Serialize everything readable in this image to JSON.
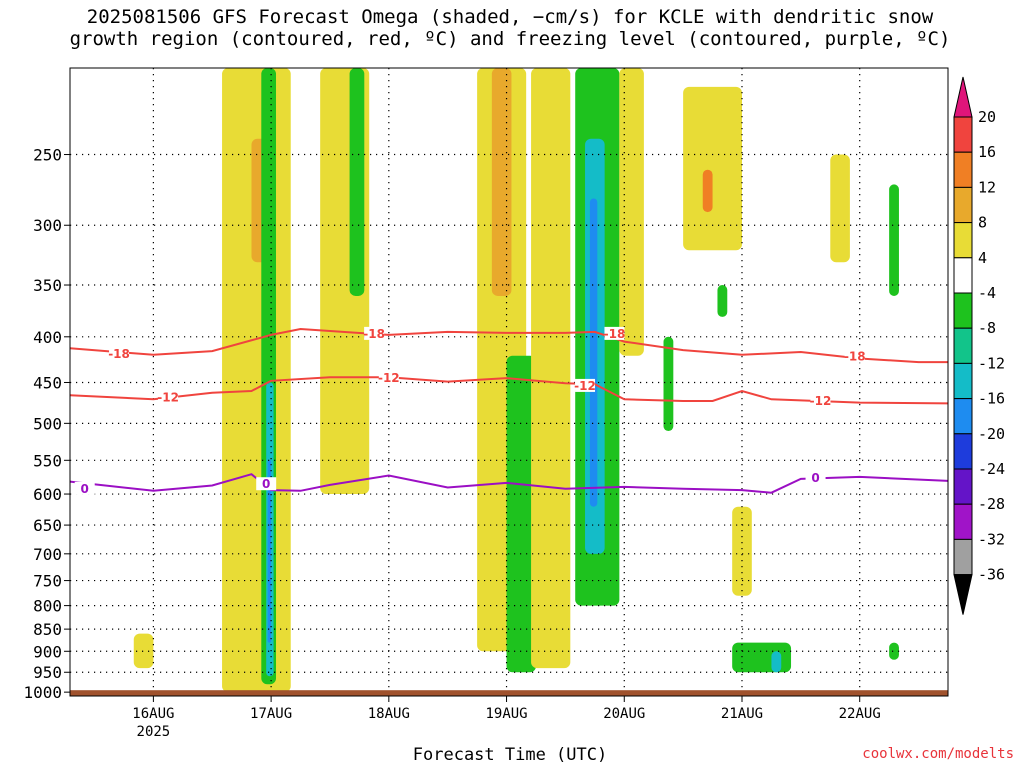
{
  "title_line1": "2025081506 GFS Forecast Omega (shaded, −cm/s) for KCLE with dendritic snow",
  "title_line2": "growth region (contoured, red, ºC) and freezing level (contoured, purple, ºC)",
  "credit": "coolwx.com/modelts",
  "colors": {
    "ground": "#a0522d",
    "contour_red": "#f0443e",
    "contour_purple": "#9b0fc4"
  },
  "chart_data": {
    "type": "heatmap",
    "title": "2025081506 GFS Forecast Omega (shaded, −cm/s) for KCLE with dendritic snow growth region (contoured, red, ºC) and freezing level (contoured, purple, ºC)",
    "xlabel": "Forecast Time (UTC)",
    "ylabel": "",
    "x_ticks": [
      "16AUG",
      "17AUG",
      "18AUG",
      "19AUG",
      "20AUG",
      "21AUG",
      "22AUG"
    ],
    "x_sub_label": "2025",
    "x_range_hours": [
      -17,
      162
    ],
    "y_ticks": [
      250,
      300,
      350,
      400,
      450,
      500,
      550,
      600,
      650,
      700,
      750,
      800,
      850,
      900,
      950,
      1000
    ],
    "y_range_hpa": [
      200,
      1010
    ],
    "grid": true,
    "colorbar": {
      "labels": [
        20,
        16,
        12,
        8,
        4,
        -4,
        -8,
        -12,
        -16,
        -20,
        -24,
        -28,
        -32,
        -36
      ],
      "bins": [
        {
          "from": 20,
          "to": 99,
          "color": "#e0157a"
        },
        {
          "from": 16,
          "to": 20,
          "color": "#f0443e"
        },
        {
          "from": 12,
          "to": 16,
          "color": "#f07f24"
        },
        {
          "from": 8,
          "to": 12,
          "color": "#e8a92c"
        },
        {
          "from": 4,
          "to": 8,
          "color": "#e8dc36"
        },
        {
          "from": -4,
          "to": 4,
          "color": "#ffffff"
        },
        {
          "from": -8,
          "to": -4,
          "color": "#1ec21e"
        },
        {
          "from": -12,
          "to": -8,
          "color": "#12c48a"
        },
        {
          "from": -16,
          "to": -12,
          "color": "#14bcc8"
        },
        {
          "from": -20,
          "to": -16,
          "color": "#1e8cf0"
        },
        {
          "from": -24,
          "to": -20,
          "color": "#1e3cdc"
        },
        {
          "from": -28,
          "to": -24,
          "color": "#6414c8"
        },
        {
          "from": -32,
          "to": -28,
          "color": "#a014c8"
        },
        {
          "from": -36,
          "to": -32,
          "color": "#a0a0a0"
        },
        {
          "from": -99,
          "to": -36,
          "color": "#000000"
        }
      ]
    },
    "contours": [
      {
        "level": -18,
        "color": "#f0443e",
        "label": "-18",
        "points": [
          [
            -17,
            412
          ],
          [
            0,
            419
          ],
          [
            12,
            415
          ],
          [
            24,
            398
          ],
          [
            30,
            392
          ],
          [
            48,
            398
          ],
          [
            60,
            395
          ],
          [
            72,
            396
          ],
          [
            84,
            396
          ],
          [
            90,
            395
          ],
          [
            96,
            405
          ],
          [
            108,
            414
          ],
          [
            120,
            419
          ],
          [
            132,
            416
          ],
          [
            144,
            423
          ],
          [
            156,
            427
          ],
          [
            162,
            427
          ]
        ],
        "label_positions": [
          [
            -7,
            418
          ],
          [
            45,
            397
          ],
          [
            94,
            397
          ],
          [
            143,
            421
          ]
        ]
      },
      {
        "level": -12,
        "color": "#f0443e",
        "label": "-12",
        "points": [
          [
            -17,
            465
          ],
          [
            0,
            470
          ],
          [
            12,
            462
          ],
          [
            20,
            460
          ],
          [
            24,
            448
          ],
          [
            36,
            444
          ],
          [
            48,
            444
          ],
          [
            60,
            449
          ],
          [
            72,
            445
          ],
          [
            84,
            451
          ],
          [
            90,
            452
          ],
          [
            96,
            470
          ],
          [
            108,
            472
          ],
          [
            114,
            472
          ],
          [
            120,
            460
          ],
          [
            126,
            470
          ],
          [
            144,
            474
          ],
          [
            162,
            475
          ]
        ],
        "label_positions": [
          [
            3,
            468
          ],
          [
            48,
            445
          ],
          [
            88,
            454
          ],
          [
            136,
            472
          ]
        ]
      },
      {
        "level": 0,
        "color": "#9b0fc4",
        "label": "0",
        "points": [
          [
            -17,
            581
          ],
          [
            0,
            595
          ],
          [
            12,
            587
          ],
          [
            20,
            570
          ],
          [
            24,
            594
          ],
          [
            30,
            595
          ],
          [
            36,
            586
          ],
          [
            48,
            572
          ],
          [
            60,
            590
          ],
          [
            72,
            583
          ],
          [
            84,
            592
          ],
          [
            96,
            589
          ],
          [
            108,
            592
          ],
          [
            120,
            594
          ],
          [
            126,
            598
          ],
          [
            132,
            577
          ],
          [
            144,
            574
          ],
          [
            162,
            580
          ]
        ],
        "label_positions": [
          [
            -14,
            592
          ],
          [
            23,
            585
          ],
          [
            135,
            576
          ]
        ]
      }
    ],
    "omega_features": [
      {
        "value": 6,
        "t0": 14,
        "t1": 28,
        "p0": 200,
        "p1": 1000
      },
      {
        "value": 10,
        "t0": 20,
        "t1": 24,
        "p0": 240,
        "p1": 330
      },
      {
        "value": -6,
        "t0": 22,
        "t1": 25,
        "p0": 200,
        "p1": 980
      },
      {
        "value": -14,
        "t0": 23,
        "t1": 24.5,
        "p0": 450,
        "p1": 960
      },
      {
        "value": -18,
        "t0": 23.3,
        "t1": 24,
        "p0": 550,
        "p1": 880
      },
      {
        "value": 6,
        "t0": 34,
        "t1": 44,
        "p0": 200,
        "p1": 600
      },
      {
        "value": -6,
        "t0": 40,
        "t1": 43,
        "p0": 200,
        "p1": 360
      },
      {
        "value": 6,
        "t0": 66,
        "t1": 76,
        "p0": 200,
        "p1": 900
      },
      {
        "value": 10,
        "t0": 69,
        "t1": 73,
        "p0": 200,
        "p1": 360
      },
      {
        "value": -6,
        "t0": 72,
        "t1": 78,
        "p0": 420,
        "p1": 950
      },
      {
        "value": 6,
        "t0": 77,
        "t1": 85,
        "p0": 200,
        "p1": 940
      },
      {
        "value": -6,
        "t0": 86,
        "t1": 95,
        "p0": 200,
        "p1": 800
      },
      {
        "value": -14,
        "t0": 88,
        "t1": 92,
        "p0": 240,
        "p1": 700
      },
      {
        "value": -18,
        "t0": 89,
        "t1": 90.5,
        "p0": 280,
        "p1": 620
      },
      {
        "value": 6,
        "t0": 95,
        "t1": 100,
        "p0": 200,
        "p1": 420
      },
      {
        "value": -6,
        "t0": 104,
        "t1": 106,
        "p0": 400,
        "p1": 510
      },
      {
        "value": 6,
        "t0": 108,
        "t1": 120,
        "p0": 210,
        "p1": 320
      },
      {
        "value": 12,
        "t0": 112,
        "t1": 114,
        "p0": 260,
        "p1": 290
      },
      {
        "value": -6,
        "t0": 115,
        "t1": 117,
        "p0": 350,
        "p1": 380
      },
      {
        "value": 6,
        "t0": 118,
        "t1": 122,
        "p0": 620,
        "p1": 780
      },
      {
        "value": -6,
        "t0": 118,
        "t1": 130,
        "p0": 880,
        "p1": 950
      },
      {
        "value": -14,
        "t0": 126,
        "t1": 128,
        "p0": 900,
        "p1": 950
      },
      {
        "value": 6,
        "t0": -4,
        "t1": 0,
        "p0": 860,
        "p1": 940
      },
      {
        "value": 6,
        "t0": 138,
        "t1": 142,
        "p0": 250,
        "p1": 330
      },
      {
        "value": -6,
        "t0": 150,
        "t1": 152,
        "p0": 270,
        "p1": 360
      },
      {
        "value": -6,
        "t0": 150,
        "t1": 152,
        "p0": 880,
        "p1": 920
      }
    ]
  }
}
